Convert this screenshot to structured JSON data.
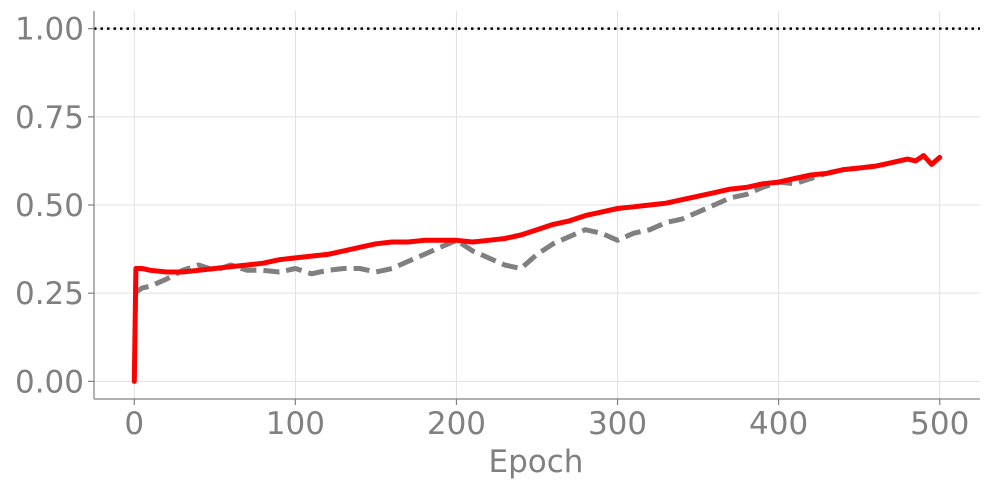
{
  "chart_data": {
    "type": "line",
    "title": "",
    "xlabel": "Epoch",
    "ylabel": "",
    "xlim": [
      -25,
      525
    ],
    "ylim": [
      -0.05,
      1.05
    ],
    "xticks": [
      0,
      100,
      200,
      300,
      400,
      500
    ],
    "yticks": [
      0.0,
      0.25,
      0.5,
      0.75,
      1.0
    ],
    "xtick_labels": [
      "0",
      "100",
      "200",
      "300",
      "400",
      "500"
    ],
    "ytick_labels": [
      "0.00",
      "0.25",
      "0.50",
      "0.75",
      "1.00"
    ],
    "grid": true,
    "reference_line": {
      "y": 1.0,
      "style": "dotted",
      "color": "#000000"
    },
    "series": [
      {
        "style": "solid",
        "color": "#ff0000",
        "x": [
          0,
          1,
          5,
          10,
          20,
          30,
          40,
          50,
          60,
          70,
          80,
          90,
          100,
          110,
          120,
          130,
          140,
          150,
          160,
          170,
          180,
          190,
          200,
          210,
          220,
          230,
          240,
          250,
          260,
          270,
          280,
          290,
          300,
          310,
          320,
          330,
          340,
          350,
          360,
          370,
          380,
          390,
          400,
          410,
          420,
          430,
          440,
          450,
          460,
          470,
          480,
          485,
          490,
          495,
          500
        ],
        "y": [
          0.0,
          0.32,
          0.32,
          0.315,
          0.31,
          0.31,
          0.315,
          0.32,
          0.325,
          0.33,
          0.335,
          0.345,
          0.35,
          0.355,
          0.36,
          0.37,
          0.38,
          0.39,
          0.395,
          0.395,
          0.4,
          0.4,
          0.4,
          0.395,
          0.4,
          0.405,
          0.415,
          0.43,
          0.445,
          0.455,
          0.47,
          0.48,
          0.49,
          0.495,
          0.5,
          0.505,
          0.515,
          0.525,
          0.535,
          0.545,
          0.55,
          0.56,
          0.565,
          0.575,
          0.585,
          0.59,
          0.6,
          0.605,
          0.61,
          0.62,
          0.63,
          0.625,
          0.64,
          0.615,
          0.635
        ]
      },
      {
        "style": "dashed",
        "color": "#808080",
        "x": [
          0,
          5,
          10,
          20,
          30,
          40,
          50,
          60,
          70,
          80,
          90,
          100,
          110,
          120,
          130,
          140,
          150,
          160,
          170,
          180,
          190,
          200,
          210,
          220,
          230,
          240,
          250,
          260,
          270,
          280,
          290,
          300,
          310,
          320,
          330,
          340,
          350,
          360,
          370,
          380,
          390,
          400,
          410,
          420,
          430,
          440,
          450,
          460
        ],
        "y": [
          0.25,
          0.265,
          0.27,
          0.29,
          0.315,
          0.33,
          0.315,
          0.33,
          0.315,
          0.315,
          0.31,
          0.32,
          0.305,
          0.315,
          0.32,
          0.32,
          0.31,
          0.32,
          0.34,
          0.36,
          0.38,
          0.4,
          0.37,
          0.35,
          0.33,
          0.32,
          0.36,
          0.39,
          0.41,
          0.43,
          0.42,
          0.4,
          0.42,
          0.43,
          0.45,
          0.46,
          0.48,
          0.5,
          0.52,
          0.53,
          0.55,
          0.565,
          0.56,
          0.575,
          0.59,
          0.6,
          0.605,
          0.61
        ]
      }
    ]
  }
}
